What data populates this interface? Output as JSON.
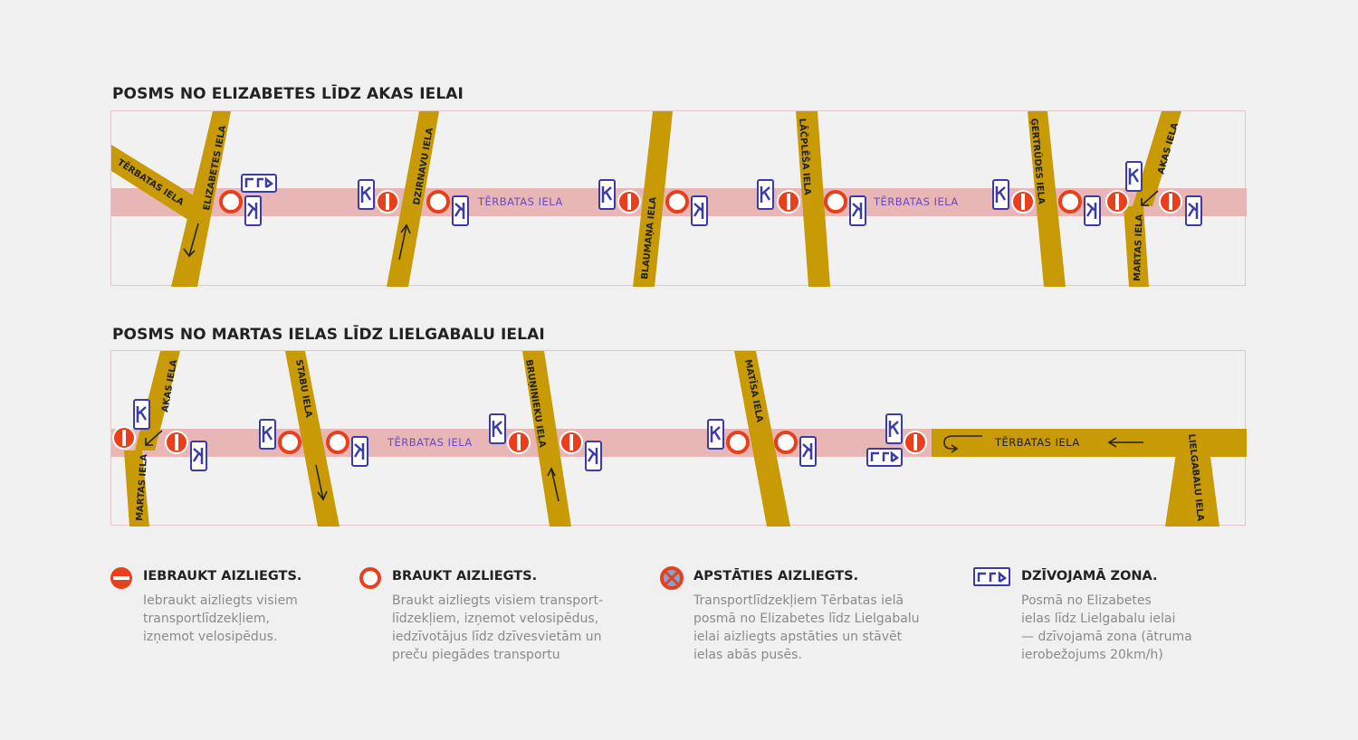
{
  "sections": [
    {
      "title": "POSMS NO ELIZABETES LĪDZ AKAS IELAI"
    },
    {
      "title": "POSMS NO MARTAS IELAS LĪDZ LIELGABALU IELAI"
    }
  ],
  "map1": {
    "streets": {
      "terbatas_left": "TĒRBATAS IELA",
      "elizabetes": "ELIZABETES IELA",
      "dzirnavu": "DZIRNAVU IELA",
      "terbatas_1": "TĒRBATAS IELA",
      "blaumana": "BLAUMAŅA IELA",
      "lacplesa": "LĀČPLĒŠA IELA",
      "terbatas_2": "TĒRBATAS IELA",
      "gertrudes": "ĢERTRŪDES IELA",
      "akas": "AKAS IELA",
      "martas": "MARTAS IELA"
    }
  },
  "map2": {
    "streets": {
      "akas": "AKAS IELA",
      "martas": "MARTAS IELA",
      "stabu": "STABU IELA",
      "terbatas_1": "TĒRBATAS IELA",
      "brunieku": "BRUŅINIEKU IELA",
      "matisa": "MATĪSA IELA",
      "terbatas_oneway": "TĒRBATAS IELA",
      "lielgabalu": "LIELGABALU IELA"
    }
  },
  "colors": {
    "road": "#c89a05",
    "pedestrian": "#e9b6b6",
    "sign_red": "#e8401c",
    "zone_blue": "#3b3ba8",
    "street_text": "#6a4ab8"
  },
  "legend": [
    {
      "icon": "no-entry-icon",
      "title": "IEBRAUKT AIZLIEGTS.",
      "desc": [
        "Iebraukt aizliegts visiem",
        "transportlīdzekļiem,",
        "izņemot velosipēdus."
      ]
    },
    {
      "icon": "no-vehicles-icon",
      "title": "BRAUKT AIZLIEGTS.",
      "desc": [
        "Braukt aizliegts visiem transport-",
        "līdzekļiem, izņemot velosipēdus,",
        "iedzīvotājus līdz dzīvesvietām un",
        "preču piegādes transportu"
      ]
    },
    {
      "icon": "no-stopping-icon",
      "title": "APSTĀTIES AIZLIEGTS.",
      "desc": [
        "Transportlīdzekļiem Tērbatas ielā",
        "posmā no Elizabetes līdz Lielgabalu",
        "ielai aizliegts apstāties un stāvēt",
        "ielas abās pusēs."
      ]
    },
    {
      "icon": "living-zone-icon",
      "title": "DZĪVOJAMĀ ZONA.",
      "desc": [
        "Posmā no Elizabetes",
        "ielas līdz Lielgabalu ielai",
        "— dzīvojamā zona (ātruma",
        "ierobežojums 20km/h)"
      ]
    }
  ]
}
